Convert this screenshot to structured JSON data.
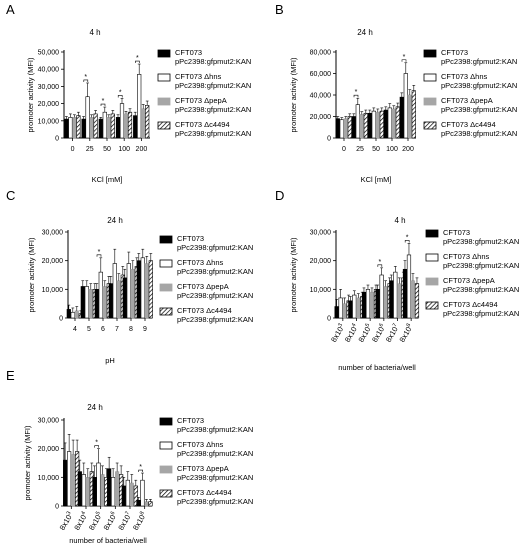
{
  "figure": {
    "panels": [
      {
        "letter": "A",
        "title": "4 h",
        "xlabel": "KCl [mM]",
        "ylabel": "promoter activity (MFI)"
      },
      {
        "letter": "B",
        "title": "24 h",
        "xlabel": "KCl [mM]",
        "ylabel": "promoter activity (MFI)"
      },
      {
        "letter": "C",
        "title": "24 h",
        "xlabel": "pH",
        "ylabel": "promoter activity (MFI)"
      },
      {
        "letter": "D",
        "title": "4 h",
        "xlabel": "number of bacteria/well",
        "ylabel": "promoter activity (MFI)"
      },
      {
        "letter": "E",
        "title": "24 h",
        "xlabel": "number of bacteria/well",
        "ylabel": "promoter activity (MFI)"
      }
    ],
    "legend": [
      {
        "line1": "CFT073",
        "line2": "pPc2398:gfpmut2:KAN"
      },
      {
        "line1": "CFT073 Δhns",
        "line2": "pPc2398:gfpmut2:KAN"
      },
      {
        "line1": "CFT073 ΔpepA",
        "line2": "pPc2398:gfpmut2:KAN"
      },
      {
        "line1": "CFT073 Δc4494",
        "line2": "pPc2398:gfpmut2:KAN"
      }
    ],
    "sig_mark": "*",
    "colors": {
      "wt": "#000000",
      "hns": "#ffffff",
      "pepA": "#a6a6a6",
      "c4494": "hatched"
    }
  },
  "chart_data": [
    {
      "type": "bar",
      "panel": "A",
      "title": "4 h",
      "xlabel": "KCl [mM]",
      "ylabel": "promoter activity (MFI)",
      "categories": [
        "0",
        "25",
        "50",
        "100",
        "200"
      ],
      "ylim": [
        0,
        50000
      ],
      "yticks": [
        "0",
        "10,000",
        "20,000",
        "30,000",
        "40,000",
        "50,000"
      ],
      "series": [
        {
          "name": "CFT073",
          "values": [
            11000,
            11000,
            11000,
            12000,
            13000
          ],
          "errors": [
            1500,
            1500,
            1000,
            1500,
            2000
          ]
        },
        {
          "name": "CFT073 Δhns",
          "values": [
            12000,
            24000,
            15000,
            20000,
            37000
          ],
          "errors": [
            2000,
            8000,
            3000,
            3000,
            6000
          ]
        },
        {
          "name": "CFT073 ΔpepA",
          "values": [
            12000,
            12000,
            12000,
            14000,
            17000
          ],
          "errors": [
            1500,
            1500,
            1500,
            1500,
            2500
          ]
        },
        {
          "name": "CFT073 Δc4494",
          "values": [
            13000,
            14000,
            14000,
            15000,
            19000
          ],
          "errors": [
            2000,
            2000,
            2000,
            2000,
            2500
          ]
        }
      ],
      "significance": [
        1,
        2,
        3,
        4
      ]
    },
    {
      "type": "bar",
      "panel": "B",
      "title": "24 h",
      "xlabel": "KCl [mM]",
      "ylabel": "promoter activity (MFI)",
      "categories": [
        "0",
        "25",
        "50",
        "100",
        "200"
      ],
      "ylim": [
        0,
        80000
      ],
      "yticks": [
        "0",
        "20,000",
        "40,000",
        "60,000",
        "80,000"
      ],
      "series": [
        {
          "name": "CFT073",
          "values": [
            18000,
            20000,
            23000,
            26000,
            38000
          ],
          "errors": [
            2000,
            2500,
            3000,
            3000,
            4000
          ]
        },
        {
          "name": "CFT073 Δhns",
          "values": [
            17000,
            31000,
            25000,
            28000,
            60000
          ],
          "errors": [
            2000,
            6000,
            3000,
            4000,
            10000
          ]
        },
        {
          "name": "CFT073 ΔpepA",
          "values": [
            18000,
            22000,
            24000,
            27000,
            40000
          ],
          "errors": [
            2000,
            2500,
            3000,
            3000,
            5000
          ]
        },
        {
          "name": "CFT073 Δc4494",
          "values": [
            20000,
            23000,
            25000,
            29000,
            44000
          ],
          "errors": [
            2500,
            3000,
            3000,
            3500,
            5000
          ]
        }
      ],
      "significance": [
        1,
        4
      ]
    },
    {
      "type": "bar",
      "panel": "C",
      "title": "24 h",
      "xlabel": "pH",
      "ylabel": "promoter activity (MFI)",
      "categories": [
        "4",
        "5",
        "6",
        "7",
        "8",
        "9"
      ],
      "ylim": [
        0,
        30000
      ],
      "yticks": [
        "0",
        "10,000",
        "20,000",
        "30,000"
      ],
      "series": [
        {
          "name": "CFT073",
          "values": [
            3000,
            11000,
            10000,
            12000,
            14000,
            20000
          ],
          "errors": [
            1500,
            2000,
            2000,
            2500,
            3000,
            2500
          ]
        },
        {
          "name": "CFT073 Δhns",
          "values": [
            2000,
            11000,
            16000,
            19000,
            19000,
            21000
          ],
          "errors": [
            1500,
            2000,
            5000,
            5000,
            4000,
            3000
          ]
        },
        {
          "name": "CFT073 ΔpepA",
          "values": [
            2500,
            10000,
            11000,
            13000,
            17000,
            19000
          ],
          "errors": [
            1500,
            2000,
            2000,
            2500,
            3000,
            2500
          ]
        },
        {
          "name": "CFT073 Δc4494",
          "values": [
            1500,
            10000,
            12000,
            15000,
            18000,
            20000
          ],
          "errors": [
            1000,
            2000,
            2500,
            3000,
            3000,
            2500
          ]
        }
      ],
      "significance": [
        2
      ]
    },
    {
      "type": "bar",
      "panel": "D",
      "title": "4 h",
      "xlabel": "number of bacteria/well",
      "ylabel": "promoter activity (MFI)",
      "categories": [
        "8x10^3",
        "8x10^4",
        "8x10^5",
        "8x10^6",
        "8x10^7",
        "8x10^8"
      ],
      "ylim": [
        0,
        30000
      ],
      "yticks": [
        "0",
        "10,000",
        "20,000",
        "30,000"
      ],
      "series": [
        {
          "name": "CFT073",
          "values": [
            4000,
            6000,
            9000,
            10000,
            13000,
            17000
          ],
          "errors": [
            2500,
            1500,
            1500,
            1500,
            2000,
            3000
          ]
        },
        {
          "name": "CFT073 Δhns",
          "values": [
            7000,
            8000,
            10000,
            15000,
            16000,
            22000
          ],
          "errors": [
            3000,
            1500,
            1500,
            2500,
            2000,
            4000
          ]
        },
        {
          "name": "CFT073 ΔpepA",
          "values": [
            5000,
            7000,
            9000,
            11000,
            12000,
            13000
          ],
          "errors": [
            2000,
            1500,
            1500,
            2000,
            2000,
            2500
          ]
        },
        {
          "name": "CFT073 Δc4494",
          "values": [
            6000,
            7500,
            10000,
            12000,
            14000,
            12000
          ],
          "errors": [
            2000,
            1500,
            1500,
            2000,
            2000,
            2000
          ]
        }
      ],
      "significance": [
        3,
        5
      ]
    },
    {
      "type": "bar",
      "panel": "E",
      "title": "24 h",
      "xlabel": "number of bacteria/well",
      "ylabel": "promoter activity (MFI)",
      "categories": [
        "8x10^3",
        "8x10^4",
        "8x10^5",
        "8x10^6",
        "8x10^7",
        "8x10^8"
      ],
      "ylim": [
        0,
        30000
      ],
      "yticks": [
        "0",
        "10,000",
        "20,000",
        "30,000"
      ],
      "series": [
        {
          "name": "CFT073",
          "values": [
            16000,
            12000,
            10000,
            13000,
            7000,
            2000
          ],
          "errors": [
            6000,
            4000,
            4000,
            4000,
            3000,
            1000
          ]
        },
        {
          "name": "CFT073 Δhns",
          "values": [
            19000,
            11000,
            15000,
            10000,
            9000,
            9000
          ],
          "errors": [
            6000,
            4000,
            5000,
            3000,
            3000,
            2500
          ]
        },
        {
          "name": "CFT073 ΔpepA",
          "values": [
            18000,
            10000,
            11000,
            12000,
            8000,
            1500
          ],
          "errors": [
            5000,
            3000,
            3000,
            3000,
            3000,
            800
          ]
        },
        {
          "name": "CFT073 Δc4494",
          "values": [
            19000,
            12000,
            10000,
            11000,
            7000,
            1500
          ],
          "errors": [
            4000,
            3000,
            3000,
            3000,
            2000,
            800
          ]
        }
      ],
      "significance": [
        2,
        5
      ]
    }
  ]
}
